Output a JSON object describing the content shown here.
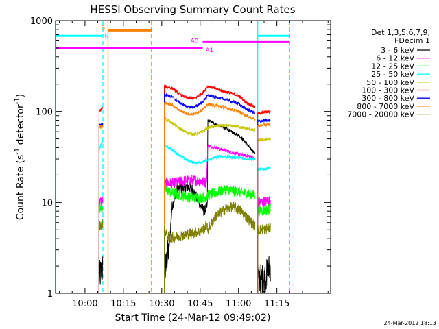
{
  "chart_data": {
    "type": "line",
    "title": "HESSI Observing Summary Count Rates",
    "xlabel": "Start Time (24-Mar-12 09:49:02)",
    "ylabel_main": "Count Rate (s",
    "ylabel_sup1": "-1",
    "ylabel_mid": " detector",
    "ylabel_sup2": "-1",
    "ylabel_end": ")",
    "ylabel_full": "Count Rate (s-1 detector-1)",
    "yscale": "log",
    "ylim": [
      1,
      1000
    ],
    "xlim_minutes": [
      -11.5,
      96
    ],
    "x_ticks": [
      {
        "m": 0,
        "label": "10:00"
      },
      {
        "m": 15,
        "label": "10:15"
      },
      {
        "m": 30,
        "label": "10:30"
      },
      {
        "m": 45,
        "label": "10:45"
      },
      {
        "m": 60,
        "label": "11:00"
      },
      {
        "m": 75,
        "label": "11:15"
      }
    ],
    "y_ticks": [
      {
        "v": 1,
        "label": "1"
      },
      {
        "v": 10,
        "label": "10"
      },
      {
        "v": 100,
        "label": "100"
      },
      {
        "v": 1000,
        "label": "1000"
      }
    ],
    "legend_header": [
      "Det 1,3,5,6,7,9,",
      "FDecim 1"
    ],
    "legend_position": "right",
    "series": [
      {
        "name": "3 - 6 keV",
        "color": "#000000",
        "segments": [
          [
            [
              5.5,
              1.5
            ],
            [
              7.0,
              1.9
            ]
          ],
          [
            [
              31.0,
              1.5
            ],
            [
              33.0,
              3.5
            ],
            [
              34.0,
              9
            ],
            [
              36.0,
              14
            ],
            [
              40.0,
              15
            ],
            [
              42.0,
              14
            ],
            [
              44.5,
              10
            ],
            [
              46.5,
              8
            ],
            [
              47.8,
              9
            ],
            [
              48.0,
              80
            ],
            [
              50,
              75
            ],
            [
              55,
              65
            ],
            [
              60,
              55
            ],
            [
              63,
              45
            ],
            [
              65,
              38
            ],
            [
              66.5,
              35
            ]
          ],
          [
            [
              67.5,
              1.5
            ],
            [
              70,
              1.4
            ],
            [
              72.5,
              2.0
            ]
          ]
        ]
      },
      {
        "name": "6 - 12 keV",
        "color": "#ff00ff",
        "segments": [
          [
            [
              5.5,
              10
            ],
            [
              7.0,
              10.5
            ]
          ],
          [
            [
              31.0,
              16
            ],
            [
              35,
              16.5
            ],
            [
              40,
              17.5
            ],
            [
              44,
              17.5
            ],
            [
              47.5,
              16.5
            ],
            [
              48.0,
              42
            ],
            [
              51,
              40
            ],
            [
              55,
              37
            ],
            [
              60,
              34
            ],
            [
              65,
              32
            ],
            [
              66.5,
              30
            ]
          ],
          [
            [
              67.5,
              10
            ],
            [
              72.5,
              10.5
            ]
          ]
        ]
      },
      {
        "name": "12 - 25 keV",
        "color": "#00ff00",
        "segments": [
          [
            [
              5.5,
              8.5
            ],
            [
              7.0,
              9
            ]
          ],
          [
            [
              31.0,
              14
            ],
            [
              35,
              12.5
            ],
            [
              40,
              11.5
            ],
            [
              45,
              11.3
            ],
            [
              47.5,
              11.5
            ],
            [
              48.0,
              12
            ],
            [
              52,
              13
            ],
            [
              55,
              14
            ],
            [
              60,
              13
            ],
            [
              66.5,
              12
            ]
          ],
          [
            [
              67.5,
              8
            ],
            [
              72.5,
              8.5
            ]
          ]
        ]
      },
      {
        "name": "25 - 50 keV",
        "color": "#00ffff",
        "segments": [
          [
            [
              5.5,
              38
            ],
            [
              7.0,
              48
            ]
          ],
          [
            [
              31.0,
              42
            ],
            [
              34,
              38
            ],
            [
              37,
              33
            ],
            [
              40,
              29
            ],
            [
              43,
              27
            ],
            [
              46,
              28
            ],
            [
              48,
              29
            ],
            [
              52,
              32
            ],
            [
              55,
              32
            ],
            [
              60,
              31
            ],
            [
              63,
              30
            ],
            [
              66.5,
              30
            ]
          ],
          [
            [
              67.5,
              23
            ],
            [
              72.5,
              24
            ]
          ]
        ]
      },
      {
        "name": "50 - 100 keV",
        "color": "#c8c800",
        "segments": [
          [
            [
              5.5,
              65
            ],
            [
              7.0,
              68
            ]
          ],
          [
            [
              31.0,
              85
            ],
            [
              34,
              75
            ],
            [
              37,
              65
            ],
            [
              40,
              58
            ],
            [
              43,
              56
            ],
            [
              46,
              60
            ],
            [
              48,
              66
            ],
            [
              52,
              70
            ],
            [
              55,
              70
            ],
            [
              60,
              68
            ],
            [
              63,
              65
            ],
            [
              66.5,
              62
            ]
          ],
          [
            [
              67.5,
              48
            ],
            [
              72.5,
              50
            ]
          ]
        ]
      },
      {
        "name": "100 - 300 keV",
        "color": "#ff0000",
        "segments": [
          [
            [
              5.5,
              100
            ],
            [
              7.0,
              110
            ]
          ],
          [
            [
              31.0,
              190
            ],
            [
              34,
              180
            ],
            [
              37,
              155
            ],
            [
              40,
              140
            ],
            [
              43,
              140
            ],
            [
              46,
              160
            ],
            [
              48,
              190
            ],
            [
              52,
              175
            ],
            [
              55,
              165
            ],
            [
              60,
              150
            ],
            [
              63,
              125
            ],
            [
              66.5,
              112
            ]
          ],
          [
            [
              67.5,
              95
            ],
            [
              72.5,
              100
            ]
          ]
        ]
      },
      {
        "name": "300 - 800 keV",
        "color": "#0000ff",
        "segments": [
          [
            [
              5.5,
              71
            ],
            [
              7.0,
              72
            ]
          ],
          [
            [
              31.0,
              155
            ],
            [
              34,
              145
            ],
            [
              37,
              125
            ],
            [
              40,
              112
            ],
            [
              43,
              112
            ],
            [
              46,
              128
            ],
            [
              48,
              150
            ],
            [
              52,
              142
            ],
            [
              55,
              135
            ],
            [
              60,
              122
            ],
            [
              63,
              106
            ],
            [
              66.5,
              96
            ]
          ],
          [
            [
              67.5,
              78
            ],
            [
              72.5,
              80
            ]
          ]
        ]
      },
      {
        "name": "800 - 7000 keV",
        "color": "#ff8000",
        "segments": [
          [
            [
              5.5,
              68
            ],
            [
              7.0,
              69
            ]
          ],
          [
            [
              31.0,
              125
            ],
            [
              34,
              118
            ],
            [
              37,
              103
            ],
            [
              40,
              94
            ],
            [
              43,
              94
            ],
            [
              46,
              105
            ],
            [
              48,
              120
            ],
            [
              52,
              115
            ],
            [
              55,
              110
            ],
            [
              60,
              100
            ],
            [
              63,
              90
            ],
            [
              66.5,
              82
            ]
          ],
          [
            [
              67.5,
              70
            ],
            [
              72.5,
              72
            ]
          ]
        ]
      },
      {
        "name": "7000 - 20000 keV",
        "color": "#808000",
        "segments": [
          [
            [
              5.5,
              5.5
            ],
            [
              7.0,
              6
            ]
          ],
          [
            [
              31.0,
              5
            ],
            [
              33,
              4
            ],
            [
              36,
              4.2
            ],
            [
              40,
              4.5
            ],
            [
              45,
              4.8
            ],
            [
              47.5,
              5.5
            ],
            [
              48.0,
              5
            ],
            [
              51,
              7
            ],
            [
              55,
              8.5
            ],
            [
              58,
              9
            ],
            [
              61,
              8
            ],
            [
              64,
              6.5
            ],
            [
              66.5,
              5.5
            ]
          ],
          [
            [
              67.5,
              5
            ],
            [
              72.5,
              5.2
            ]
          ]
        ]
      }
    ],
    "flag_bars": [
      {
        "label": "S",
        "color": "#ff8000",
        "x0": 9.0,
        "x1": 26.0,
        "level": 780
      },
      {
        "label": "N",
        "color": "#00ffff",
        "x0": -11.5,
        "x1": 7.0,
        "level": 680
      },
      {
        "label": "N",
        "color": "#00ffff",
        "x0": 67.5,
        "x1": 80.0,
        "level": 680
      },
      {
        "label": "A0",
        "color": "#ff00ff",
        "x0": 46.0,
        "x1": 80.0,
        "level": 580
      },
      {
        "label": "A1",
        "color": "#ff00ff",
        "x0": -11.5,
        "x1": 46.0,
        "level": 500
      }
    ],
    "flag_label_S": "S",
    "flag_label_N": "N",
    "flag_label_A0": "A0",
    "flag_label_A1": "A1",
    "night_lines_dashed": [
      7.0,
      80.0
    ],
    "night_lines_solid": [
      -11.5,
      67.5
    ],
    "saa_lines_dashed": [
      26.0
    ],
    "saa_lines_solid": [
      9.0
    ],
    "timestamp": "24-Mar-2012 18:13"
  }
}
